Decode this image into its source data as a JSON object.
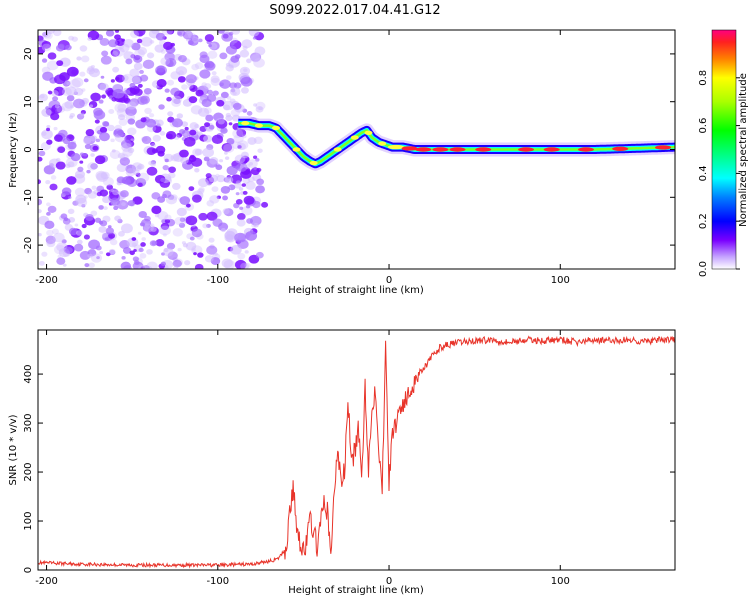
{
  "title": "S099.2022.017.04.41.G12",
  "colors": {
    "axis": "#000000",
    "snr_line": "#e8342a",
    "noise": "#8a2be2",
    "background": "#ffffff"
  },
  "chart_data": [
    {
      "type": "heatmap",
      "name": "spectrogram",
      "xlabel": "Height of straight line (km)",
      "ylabel": "Frequency (Hz)",
      "xlim": [
        -205,
        167
      ],
      "ylim": [
        -25,
        25
      ],
      "xticks": [
        -200,
        -100,
        0,
        100
      ],
      "yticks": [
        -20,
        -10,
        0,
        10,
        20
      ],
      "noise_region": [
        -205,
        -75
      ],
      "ridge": {
        "x": [
          -88,
          -82,
          -76,
          -70,
          -66,
          -62,
          -58,
          -54,
          -50,
          -46,
          -43,
          -40,
          -36,
          -32,
          -28,
          -24,
          -20,
          -16,
          -13,
          -10,
          -6,
          -2,
          2,
          8,
          15,
          25,
          40,
          60,
          80,
          100,
          120,
          140,
          167
        ],
        "freq": [
          5.5,
          5.5,
          5.0,
          5.0,
          4.5,
          3.0,
          1.5,
          0.0,
          -1.5,
          -2.5,
          -3.0,
          -2.5,
          -1.5,
          -0.5,
          0.5,
          1.5,
          2.5,
          3.5,
          4.0,
          2.5,
          1.5,
          1.0,
          0.5,
          0.5,
          0.0,
          0.0,
          0.0,
          0.0,
          0.0,
          0.0,
          0.0,
          0.2,
          0.5
        ]
      },
      "colorbar": {
        "label": "Normalized spectral amplitude",
        "min": 0.0,
        "max": 1.0,
        "ticks": [
          "0.0",
          "0.2",
          "0.4",
          "0.6",
          "0.8"
        ]
      }
    },
    {
      "type": "line",
      "name": "snr",
      "xlabel": "Height of straight line (km)",
      "ylabel": "SNR (10 * v/v)",
      "xlim": [
        -205,
        167
      ],
      "ylim": [
        0,
        490
      ],
      "xticks": [
        -200,
        -100,
        0,
        100
      ],
      "yticks": [
        0,
        100,
        200,
        300,
        400
      ],
      "x": [
        -205,
        -180,
        -150,
        -120,
        -100,
        -80,
        -70,
        -65,
        -60,
        -58,
        -56,
        -54,
        -52,
        -50,
        -48,
        -46,
        -44,
        -42,
        -40,
        -38,
        -36,
        -34,
        -32,
        -30,
        -28,
        -26,
        -24,
        -22,
        -20,
        -18,
        -16,
        -14,
        -12,
        -10,
        -8,
        -6,
        -4,
        -2,
        0,
        2,
        4,
        6,
        8,
        10,
        14,
        18,
        22,
        26,
        30,
        34,
        38,
        42,
        50,
        60,
        70,
        80,
        90,
        100,
        110,
        120,
        130,
        140,
        150,
        160,
        167
      ],
      "values": [
        15,
        12,
        10,
        10,
        10,
        12,
        18,
        22,
        45,
        120,
        165,
        95,
        60,
        40,
        55,
        110,
        75,
        50,
        90,
        140,
        120,
        30,
        160,
        245,
        180,
        200,
        350,
        220,
        240,
        290,
        180,
        380,
        210,
        320,
        380,
        255,
        160,
        470,
        175,
        280,
        300,
        330,
        340,
        345,
        380,
        405,
        420,
        440,
        455,
        460,
        462,
        465,
        468,
        470,
        465,
        470,
        468,
        470,
        465,
        470,
        468,
        470,
        466,
        470,
        470
      ]
    }
  ]
}
